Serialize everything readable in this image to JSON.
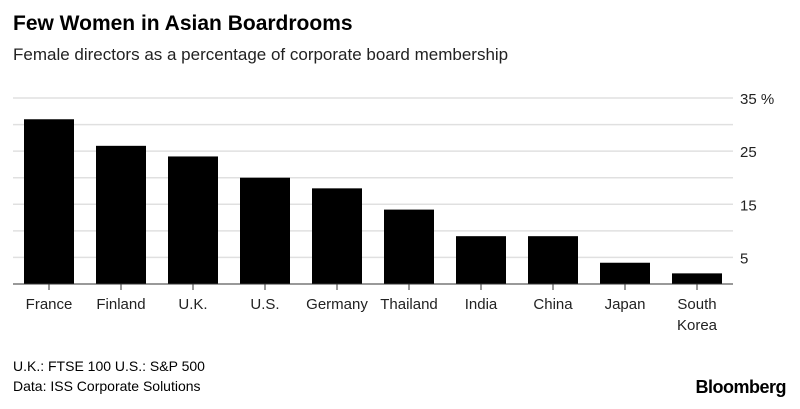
{
  "title": "Few Women in Asian Boardrooms",
  "subtitle": "Female directors as a percentage of corporate board membership",
  "notes": "U.K.: FTSE 100  U.S.: S&P 500",
  "source": "Data: ISS Corporate Solutions",
  "logo": "Bloomberg",
  "chart_data": {
    "type": "bar",
    "title": "Few Women in Asian Boardrooms",
    "subtitle": "Female directors as a percentage of corporate board membership",
    "categories": [
      "France",
      "Finland",
      "U.K.",
      "U.S.",
      "Germany",
      "Thailand",
      "India",
      "China",
      "Japan",
      "South Korea"
    ],
    "values": [
      31,
      26,
      24,
      20,
      18,
      14,
      9,
      9,
      4,
      2
    ],
    "ylim": [
      0,
      35
    ],
    "yticks": [
      5,
      15,
      25,
      35
    ],
    "ytick_labels": [
      "5",
      "15",
      "25",
      "35 %"
    ],
    "grid": true,
    "bar_color": "#000000",
    "axis_side": "right"
  }
}
